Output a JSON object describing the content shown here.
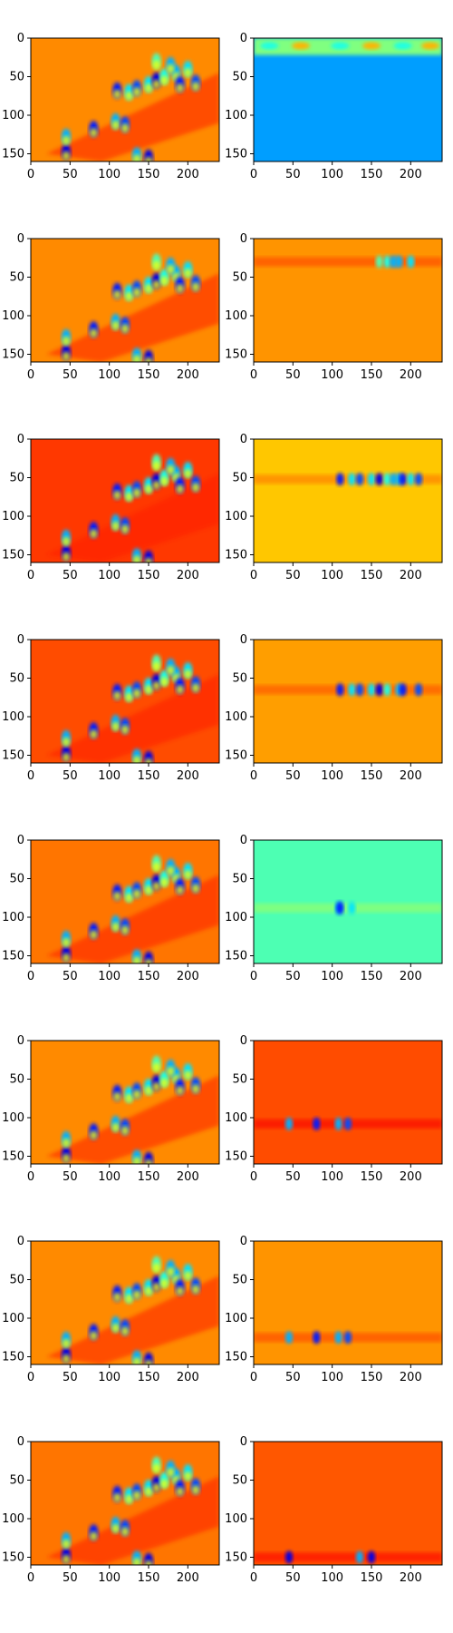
{
  "figure": {
    "rows": 8,
    "cols": 2
  },
  "chart_data": {
    "type": "heatmap",
    "colormap": "jet",
    "xlim": [
      0,
      240
    ],
    "ylim": [
      160,
      0
    ],
    "x_ticks": [
      0,
      50,
      100,
      150,
      200
    ],
    "y_ticks": [
      0,
      50,
      100,
      150
    ],
    "x_tick_labels": [
      "0",
      "50",
      "100",
      "150",
      "200"
    ],
    "y_tick_labels": [
      "0",
      "50",
      "100",
      "150"
    ],
    "grid": false,
    "panels": [
      {
        "row": 0,
        "col": 0,
        "kind": "full-map",
        "background": 0.74,
        "band_y": null
      },
      {
        "row": 0,
        "col": 1,
        "kind": "top-strip",
        "background": 0.28,
        "band_y": 12
      },
      {
        "row": 1,
        "col": 0,
        "kind": "full-map",
        "background": 0.74,
        "band_y": null
      },
      {
        "row": 1,
        "col": 1,
        "kind": "band",
        "background": 0.73,
        "band_y": 30
      },
      {
        "row": 2,
        "col": 0,
        "kind": "full-map",
        "background": 0.82,
        "band_y": null
      },
      {
        "row": 2,
        "col": 1,
        "kind": "band",
        "background": 0.68,
        "band_y": 52
      },
      {
        "row": 3,
        "col": 0,
        "kind": "full-map",
        "background": 0.8,
        "band_y": null
      },
      {
        "row": 3,
        "col": 1,
        "kind": "band",
        "background": 0.72,
        "band_y": 65
      },
      {
        "row": 4,
        "col": 0,
        "kind": "full-map",
        "background": 0.76,
        "band_y": null
      },
      {
        "row": 4,
        "col": 1,
        "kind": "band",
        "background": 0.45,
        "band_y": 88
      },
      {
        "row": 5,
        "col": 0,
        "kind": "full-map",
        "background": 0.74,
        "band_y": null
      },
      {
        "row": 5,
        "col": 1,
        "kind": "band",
        "background": 0.8,
        "band_y": 108
      },
      {
        "row": 6,
        "col": 0,
        "kind": "full-map",
        "background": 0.74,
        "band_y": null
      },
      {
        "row": 6,
        "col": 1,
        "kind": "band",
        "background": 0.73,
        "band_y": 125
      },
      {
        "row": 7,
        "col": 0,
        "kind": "full-map",
        "background": 0.76,
        "band_y": null
      },
      {
        "row": 7,
        "col": 1,
        "kind": "band",
        "background": 0.79,
        "band_y": 150
      }
    ],
    "blobs": [
      {
        "x": 45,
        "y": 148,
        "v": 0.1
      },
      {
        "x": 45,
        "y": 128,
        "v": 0.3
      },
      {
        "x": 80,
        "y": 118,
        "v": 0.15
      },
      {
        "x": 108,
        "y": 108,
        "v": 0.3
      },
      {
        "x": 120,
        "y": 112,
        "v": 0.2
      },
      {
        "x": 110,
        "y": 68,
        "v": 0.15
      },
      {
        "x": 125,
        "y": 70,
        "v": 0.35
      },
      {
        "x": 135,
        "y": 65,
        "v": 0.2
      },
      {
        "x": 150,
        "y": 60,
        "v": 0.35
      },
      {
        "x": 160,
        "y": 55,
        "v": 0.1
      },
      {
        "x": 170,
        "y": 50,
        "v": 0.4
      },
      {
        "x": 185,
        "y": 45,
        "v": 0.3
      },
      {
        "x": 190,
        "y": 60,
        "v": 0.15
      },
      {
        "x": 200,
        "y": 40,
        "v": 0.35
      },
      {
        "x": 210,
        "y": 58,
        "v": 0.2
      },
      {
        "x": 160,
        "y": 30,
        "v": 0.45
      },
      {
        "x": 178,
        "y": 35,
        "v": 0.3
      },
      {
        "x": 135,
        "y": 152,
        "v": 0.3
      },
      {
        "x": 150,
        "y": 155,
        "v": 0.1
      }
    ]
  }
}
